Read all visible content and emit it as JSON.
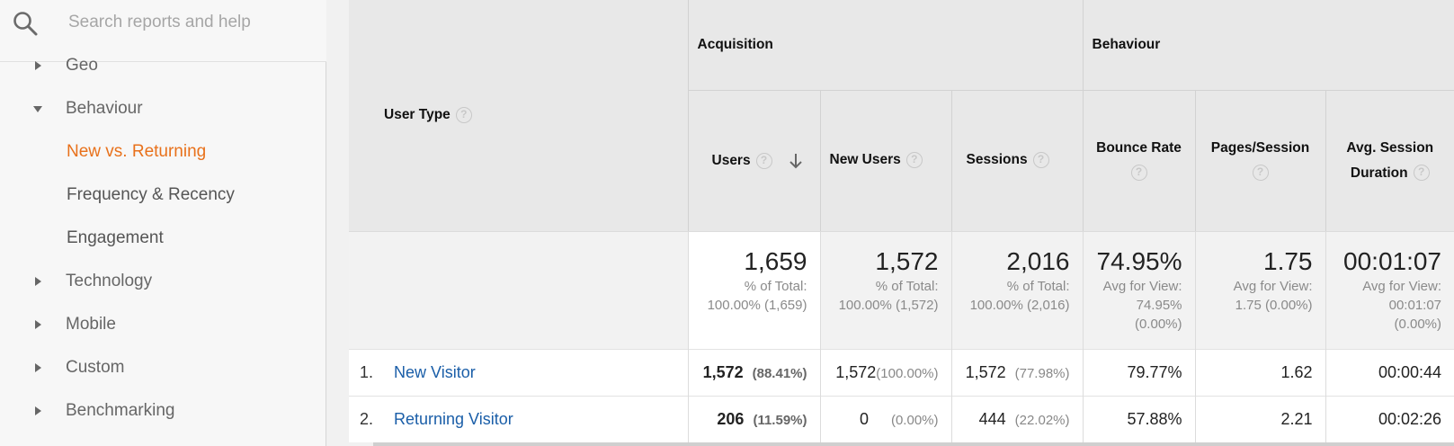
{
  "search": {
    "placeholder": "Search reports and help"
  },
  "nav": {
    "geo": "Geo",
    "behaviour": "Behaviour",
    "new_vs_returning": "New vs. Returning",
    "frequency_recency": "Frequency & Recency",
    "engagement": "Engagement",
    "technology": "Technology",
    "mobile": "Mobile",
    "custom": "Custom",
    "benchmarking": "Benchmarking"
  },
  "table": {
    "dimension_header": "User Type",
    "groups": {
      "acquisition": "Acquisition",
      "behaviour": "Behaviour"
    },
    "columns": {
      "users": "Users",
      "new_users": "New Users",
      "sessions": "Sessions",
      "bounce_rate": "Bounce Rate",
      "pages_session": "Pages/Session",
      "avg_session_duration_1": "Avg. Session",
      "avg_session_duration_2": "Duration"
    },
    "qmark": "?",
    "totals": {
      "users": {
        "value": "1,659",
        "sub1": "% of Total:",
        "sub2": "100.00% (1,659)"
      },
      "new_users": {
        "value": "1,572",
        "sub1": "% of Total:",
        "sub2": "100.00% (1,572)"
      },
      "sessions": {
        "value": "2,016",
        "sub1": "% of Total:",
        "sub2": "100.00% (2,016)"
      },
      "bounce_rate": {
        "value": "74.95%",
        "sub1": "Avg for View:",
        "sub2": "74.95%",
        "sub3": "(0.00%)"
      },
      "pages_session": {
        "value": "1.75",
        "sub1": "Avg for View:",
        "sub2": "1.75 (0.00%)"
      },
      "avg_session_duration": {
        "value": "00:01:07",
        "sub1": "Avg for View:",
        "sub2": "00:01:07",
        "sub3": "(0.00%)"
      }
    },
    "rows": [
      {
        "index": "1.",
        "user_type": "New Visitor",
        "users": "1,572",
        "users_pct": "(88.41%)",
        "new_users": "1,572",
        "new_users_pct": "(100.00%)",
        "sessions": "1,572",
        "sessions_pct": "(77.98%)",
        "bounce_rate": "79.77%",
        "pages_session": "1.62",
        "avg_session_duration": "00:00:44"
      },
      {
        "index": "2.",
        "user_type": "Returning Visitor",
        "users": "206",
        "users_pct": "(11.59%)",
        "new_users": "0",
        "new_users_pct": "(0.00%)",
        "sessions": "444",
        "sessions_pct": "(22.02%)",
        "bounce_rate": "57.88%",
        "pages_session": "2.21",
        "avg_session_duration": "00:02:26"
      }
    ]
  },
  "colors": {
    "active_nav": "#e8711b",
    "link": "#1a5ea8",
    "header_bg": "#e8e8e8"
  },
  "icons": {
    "search": "search-icon",
    "expand": "caret-right-icon",
    "collapse": "caret-down-icon",
    "sort": "arrow-down-icon",
    "help": "help-icon"
  }
}
